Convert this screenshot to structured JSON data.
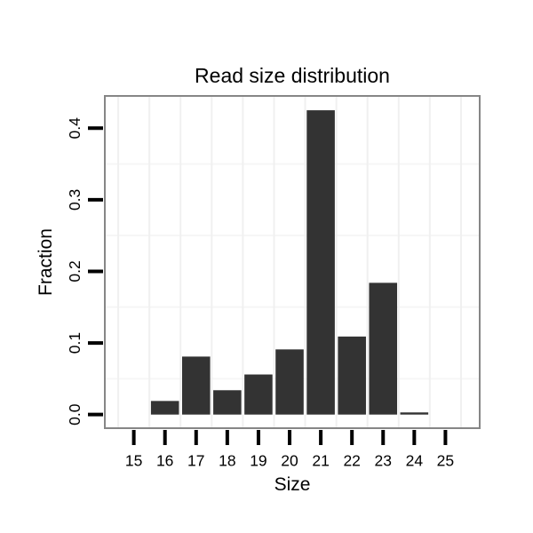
{
  "chart_data": {
    "type": "bar",
    "title": "Read size distribution",
    "xlabel": "Size",
    "ylabel": "Fraction",
    "x": [
      15,
      16,
      17,
      18,
      19,
      20,
      21,
      22,
      23,
      24,
      25
    ],
    "values": [
      0,
      0.019,
      0.081,
      0.034,
      0.056,
      0.091,
      0.425,
      0.109,
      0.184,
      0.003,
      0
    ],
    "x_tick_labels": [
      "15",
      "16",
      "17",
      "18",
      "19",
      "20",
      "21",
      "22",
      "23",
      "24",
      "25"
    ],
    "y_ticks": [
      0.0,
      0.1,
      0.2,
      0.3,
      0.4
    ],
    "y_tick_labels": [
      "0.0",
      "0.1",
      "0.2",
      "0.3",
      "0.4"
    ],
    "xlim": [
      14.07,
      26.1
    ],
    "ylim": [
      -0.019,
      0.445
    ],
    "bar_width": 0.9,
    "minor_grid_x": [
      14.5,
      15.5,
      16.5,
      17.5,
      18.5,
      19.5,
      20.5,
      21.5,
      22.5,
      23.5,
      24.5,
      25.5
    ],
    "minor_grid_y": [
      0.05,
      0.15,
      0.25,
      0.35
    ],
    "grid": "minor-only",
    "legend": "none",
    "colors": {
      "bar": "#333333",
      "panel_border": "#868686",
      "grid_vertical": "#f0f0f0",
      "grid_horizontal": "#f6f6f6",
      "tick": "#000000",
      "text": "#000000",
      "background": "#ffffff"
    }
  }
}
